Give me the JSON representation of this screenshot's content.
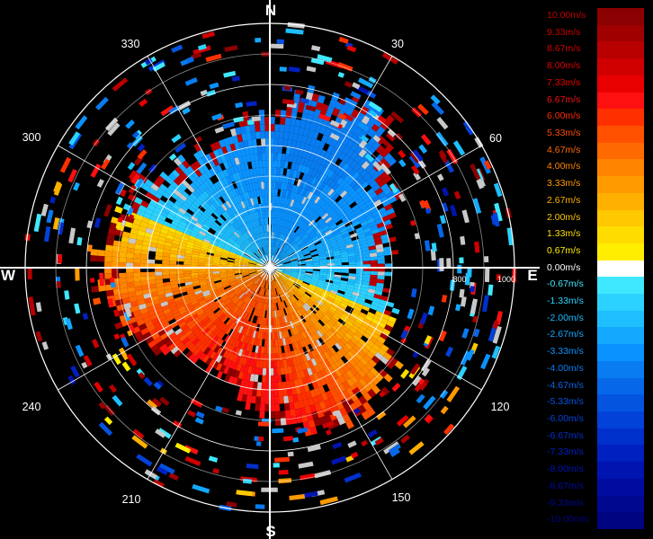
{
  "compass": {
    "north": "N",
    "east": "E",
    "south": "S",
    "west": "W"
  },
  "azimuth_labels": [
    "30",
    "60",
    "120",
    "150",
    "210",
    "240",
    "300",
    "330"
  ],
  "range_labels": [
    "800",
    "1000"
  ],
  "legend": [
    {
      "label": "10.00m/s",
      "color": "#8B0000",
      "text_color": "#c00000"
    },
    {
      "label": "9.33m/s",
      "color": "#A00000",
      "text_color": "#c80000"
    },
    {
      "label": "8.67m/s",
      "color": "#B80000",
      "text_color": "#d00000"
    },
    {
      "label": "8.00m/s",
      "color": "#D00000",
      "text_color": "#dc0000"
    },
    {
      "label": "7.33m/s",
      "color": "#E80000",
      "text_color": "#e80000"
    },
    {
      "label": "6.67m/s",
      "color": "#FF1010",
      "text_color": "#f01010"
    },
    {
      "label": "6.00m/s",
      "color": "#FF3000",
      "text_color": "#ff2a00"
    },
    {
      "label": "5.33m/s",
      "color": "#FF5000",
      "text_color": "#ff4a00"
    },
    {
      "label": "4.67m/s",
      "color": "#FF6A00",
      "text_color": "#ff6a00"
    },
    {
      "label": "4.00m/s",
      "color": "#FF8400",
      "text_color": "#ff8400"
    },
    {
      "label": "3.33m/s",
      "color": "#FF9A00",
      "text_color": "#ff9a00"
    },
    {
      "label": "2.67m/s",
      "color": "#FFB000",
      "text_color": "#ffb000"
    },
    {
      "label": "2.00m/s",
      "color": "#FFC800",
      "text_color": "#ffc800"
    },
    {
      "label": "1.33m/s",
      "color": "#FFDC00",
      "text_color": "#ffdc00"
    },
    {
      "label": "0.67m/s",
      "color": "#FFEE00",
      "text_color": "#ffee00"
    },
    {
      "label": "0.00m/s",
      "color": "#FFFFFF",
      "text_color": "#ffffff"
    },
    {
      "label": "-0.67m/s",
      "color": "#3FE8FF",
      "text_color": "#3fe8ff"
    },
    {
      "label": "-1.33m/s",
      "color": "#2CD2FF",
      "text_color": "#2cd2ff"
    },
    {
      "label": "-2.00m/s",
      "color": "#1EBEFF",
      "text_color": "#1ebeff"
    },
    {
      "label": "-2.67m/s",
      "color": "#14A8FF",
      "text_color": "#14a8ff"
    },
    {
      "label": "-3.33m/s",
      "color": "#0A92FF",
      "text_color": "#0a92ff"
    },
    {
      "label": "-4.00m/s",
      "color": "#087CF0",
      "text_color": "#087cf0"
    },
    {
      "label": "-4.67m/s",
      "color": "#0668E8",
      "text_color": "#0668e8"
    },
    {
      "label": "-5.33m/s",
      "color": "#0454E0",
      "text_color": "#0454e0"
    },
    {
      "label": "-6.00m/s",
      "color": "#0242D8",
      "text_color": "#0242d8"
    },
    {
      "label": "-6.67m/s",
      "color": "#0030CC",
      "text_color": "#0030cc"
    },
    {
      "label": "-7.33m/s",
      "color": "#0020C0",
      "text_color": "#0020c0"
    },
    {
      "label": "-8.00m/s",
      "color": "#0014B0",
      "text_color": "#0014b0"
    },
    {
      "label": "-8.67m/s",
      "color": "#000CA0",
      "text_color": "#000ca0"
    },
    {
      "label": "-9.33m/s",
      "color": "#000890",
      "text_color": "#000890"
    },
    {
      "label": "-10.00m/s",
      "color": "#000480",
      "text_color": "#000480"
    }
  ]
}
